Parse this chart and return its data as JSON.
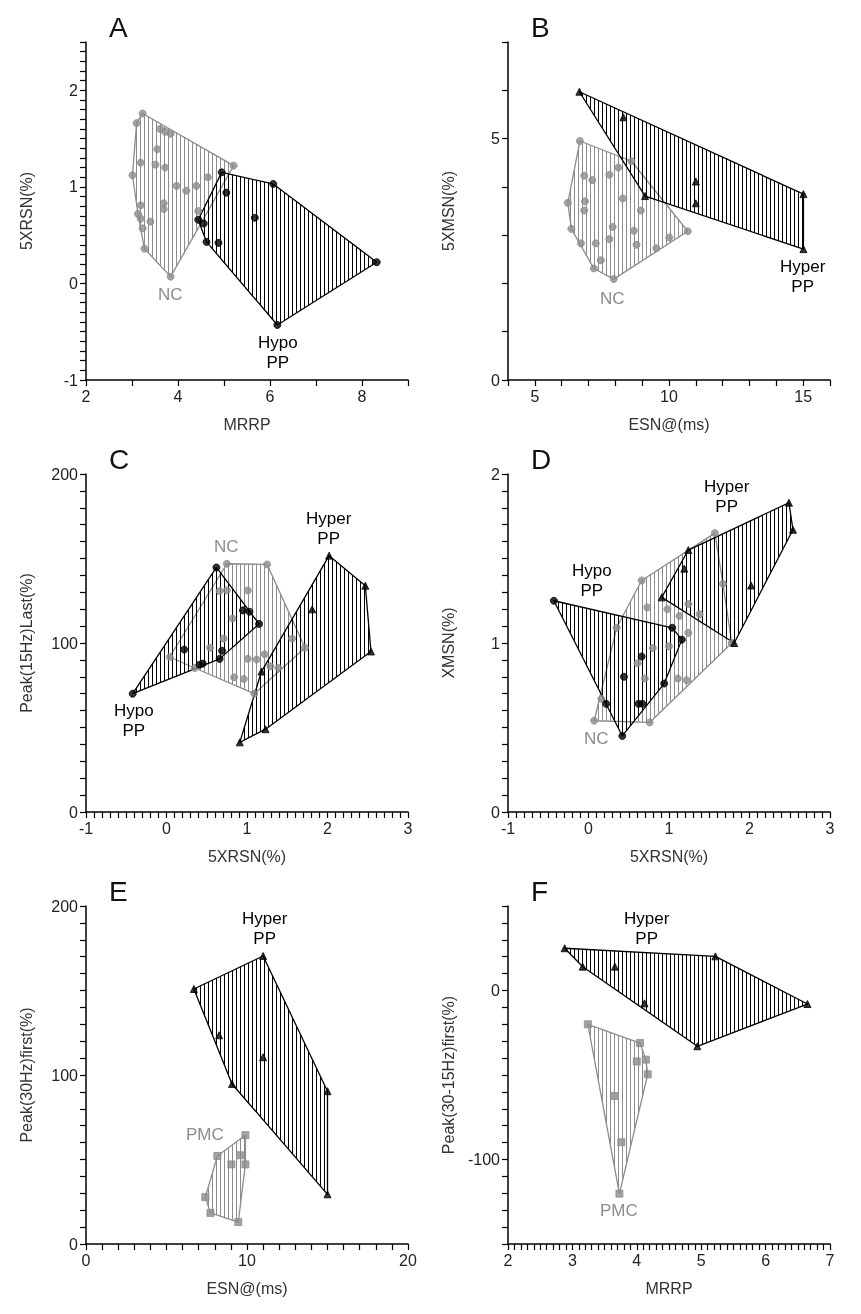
{
  "chart_data": [
    {
      "type": "scatter",
      "title": "A",
      "xlabel": "MRRP",
      "ylabel": "5XRSN(%)",
      "xlim": [
        2,
        9
      ],
      "ylim": [
        -1,
        2.5
      ],
      "xticks": [
        2,
        {
          "value": 3,
          "label": null
        },
        4,
        {
          "value": 5,
          "label": null
        },
        6,
        {
          "value": 7,
          "label": null
        },
        8,
        {
          "value": 9,
          "label": null
        }
      ],
      "yticks": [
        -1,
        {
          "value": -0.9,
          "label": null
        },
        {
          "value": -0.8,
          "label": null
        },
        {
          "value": -0.7,
          "label": null
        },
        {
          "value": -0.6,
          "label": null
        },
        {
          "value": -0.5,
          "label": null
        },
        {
          "value": -0.4,
          "label": null
        },
        {
          "value": -0.3,
          "label": null
        },
        {
          "value": -0.2,
          "label": null
        },
        {
          "value": -0.1,
          "label": null
        },
        0,
        {
          "value": 0.1,
          "label": null
        },
        {
          "value": 0.2,
          "label": null
        },
        {
          "value": 0.3,
          "label": null
        },
        {
          "value": 0.4,
          "label": null
        },
        {
          "value": 0.5,
          "label": null
        },
        {
          "value": 0.6,
          "label": null
        },
        {
          "value": 0.7,
          "label": null
        },
        {
          "value": 0.8,
          "label": null
        },
        {
          "value": 0.9,
          "label": null
        },
        1,
        {
          "value": 1.1,
          "label": null
        },
        {
          "value": 1.2,
          "label": null
        },
        {
          "value": 1.3,
          "label": null
        },
        {
          "value": 1.4,
          "label": null
        },
        {
          "value": 1.5,
          "label": null
        },
        {
          "value": 1.6,
          "label": null
        },
        {
          "value": 1.7,
          "label": null
        },
        {
          "value": 1.8,
          "label": null
        },
        {
          "value": 1.9,
          "label": null
        },
        2,
        {
          "value": 2.1,
          "label": null
        },
        {
          "value": 2.2,
          "label": null
        },
        {
          "value": 2.3,
          "label": null
        },
        {
          "value": 2.4,
          "label": null
        },
        {
          "value": 2.5,
          "label": null
        }
      ],
      "series": [
        {
          "name": "NC",
          "color": "#8c8c8c",
          "marker": "circle",
          "x": [
            3.23,
            3.1,
            3.61,
            3.72,
            3.84,
            3.55,
            5.21,
            3.19,
            3.51,
            3.72,
            3.01,
            4.65,
            3.97,
            4.18,
            4.4,
            3.69,
            3.19,
            3.69,
            4.44,
            3.13,
            3.19,
            3.4,
            3.23,
            3.27,
            3.84
          ],
          "values": [
            1.76,
            1.66,
            1.6,
            1.57,
            1.55,
            1.39,
            1.22,
            1.25,
            1.23,
            1.2,
            1.12,
            1.1,
            1.01,
            0.96,
            1.01,
            0.83,
            0.81,
            0.77,
            0.75,
            0.72,
            0.67,
            0.64,
            0.57,
            0.36,
            0.07
          ]
        },
        {
          "name": "Hypo PP",
          "color": "#000000",
          "marker": "circle",
          "x": [
            4.95,
            6.07,
            5.05,
            5.67,
            4.44,
            4.56,
            4.62,
            4.88,
            8.32,
            6.16
          ],
          "values": [
            1.15,
            1.03,
            0.94,
            0.68,
            0.66,
            0.62,
            0.43,
            0.42,
            0.22,
            -0.43
          ]
        }
      ]
    },
    {
      "type": "scatter",
      "title": "B",
      "xlabel": "ESN@(ms)",
      "ylabel": "5XMSN(%)",
      "xlim": [
        4,
        16
      ],
      "ylim": [
        0,
        7
      ],
      "xticks": [
        {
          "value": 4,
          "label": null
        },
        5,
        {
          "value": 6,
          "label": null
        },
        {
          "value": 7,
          "label": null
        },
        {
          "value": 8,
          "label": null
        },
        {
          "value": 9,
          "label": null
        },
        10,
        {
          "value": 11,
          "label": null
        },
        {
          "value": 12,
          "label": null
        },
        {
          "value": 13,
          "label": null
        },
        {
          "value": 14,
          "label": null
        },
        15,
        {
          "value": 16,
          "label": null
        }
      ],
      "yticks": [
        0,
        {
          "value": 1,
          "label": null
        },
        {
          "value": 2,
          "label": null
        },
        {
          "value": 3,
          "label": null
        },
        {
          "value": 4,
          "label": null
        },
        5,
        {
          "value": 6,
          "label": null
        },
        {
          "value": 7,
          "label": null
        }
      ],
      "series": [
        {
          "name": "NC",
          "color": "#8c8c8c",
          "marker": "circle",
          "x": [
            6.68,
            8.6,
            8.11,
            7.78,
            6.84,
            7.14,
            8.28,
            6.87,
            6.23,
            6.84,
            8.95,
            6.36,
            7.9,
            8.69,
            10.7,
            10.01,
            6.72,
            7.27,
            7.78,
            8.79,
            9.53,
            7.46,
            7.2,
            7.94
          ],
          "values": [
            4.95,
            4.53,
            4.4,
            4.25,
            4.23,
            4.14,
            3.76,
            3.7,
            3.67,
            3.51,
            3.51,
            3.13,
            3.17,
            3.09,
            3.08,
            2.95,
            2.83,
            2.83,
            2.92,
            2.8,
            2.73,
            2.48,
            2.31,
            2.09
          ]
        },
        {
          "name": "Hyper PP",
          "color": "#000000",
          "marker": "triangle",
          "x": [
            6.66,
            8.3,
            9.11,
            11.0,
            11.0,
            15.01,
            15.01
          ],
          "values": [
            5.97,
            5.44,
            3.81,
            4.11,
            3.66,
            3.85,
            2.71
          ]
        }
      ]
    },
    {
      "type": "scatter",
      "title": "C",
      "xlabel": "5XRSN(%)",
      "ylabel": "Peak(15Hz)Last(%)",
      "xlim": [
        -1,
        3
      ],
      "ylim": [
        0,
        200
      ],
      "xticks": [
        -1,
        {
          "value": -0.9,
          "label": null
        },
        {
          "value": -0.8,
          "label": null
        },
        {
          "value": -0.7,
          "label": null
        },
        {
          "value": -0.6,
          "label": null
        },
        {
          "value": -0.5,
          "label": null
        },
        {
          "value": -0.4,
          "label": null
        },
        {
          "value": -0.3,
          "label": null
        },
        {
          "value": -0.2,
          "label": null
        },
        {
          "value": -0.1,
          "label": null
        },
        0,
        {
          "value": 0.1,
          "label": null
        },
        {
          "value": 0.2,
          "label": null
        },
        {
          "value": 0.3,
          "label": null
        },
        {
          "value": 0.4,
          "label": null
        },
        {
          "value": 0.5,
          "label": null
        },
        {
          "value": 0.6,
          "label": null
        },
        {
          "value": 0.7,
          "label": null
        },
        {
          "value": 0.8,
          "label": null
        },
        {
          "value": 0.9,
          "label": null
        },
        1,
        {
          "value": 1.1,
          "label": null
        },
        {
          "value": 1.2,
          "label": null
        },
        {
          "value": 1.3,
          "label": null
        },
        {
          "value": 1.4,
          "label": null
        },
        {
          "value": 1.5,
          "label": null
        },
        {
          "value": 1.6,
          "label": null
        },
        {
          "value": 1.7,
          "label": null
        },
        {
          "value": 1.8,
          "label": null
        },
        {
          "value": 1.9,
          "label": null
        },
        2,
        {
          "value": 2.1,
          "label": null
        },
        {
          "value": 2.2,
          "label": null
        },
        {
          "value": 2.3,
          "label": null
        },
        {
          "value": 2.4,
          "label": null
        },
        {
          "value": 2.5,
          "label": null
        },
        {
          "value": 2.6,
          "label": null
        },
        {
          "value": 2.7,
          "label": null
        },
        {
          "value": 2.8,
          "label": null
        },
        {
          "value": 2.9,
          "label": null
        },
        3
      ],
      "yticks": [
        0,
        {
          "value": 10,
          "label": null
        },
        {
          "value": 20,
          "label": null
        },
        {
          "value": 30,
          "label": null
        },
        {
          "value": 40,
          "label": null
        },
        {
          "value": 50,
          "label": null
        },
        {
          "value": 60,
          "label": null
        },
        {
          "value": 70,
          "label": null
        },
        {
          "value": 80,
          "label": null
        },
        {
          "value": 90,
          "label": null
        },
        100,
        {
          "value": 110,
          "label": null
        },
        {
          "value": 120,
          "label": null
        },
        {
          "value": 130,
          "label": null
        },
        {
          "value": 140,
          "label": null
        },
        {
          "value": 150,
          "label": null
        },
        {
          "value": 160,
          "label": null
        },
        {
          "value": 170,
          "label": null
        },
        {
          "value": 180,
          "label": null
        },
        {
          "value": 190,
          "label": null
        },
        200
      ],
      "series": [
        {
          "name": "NC",
          "color": "#8c8c8c",
          "marker": "circle",
          "x": [
            0.75,
            1.25,
            0.66,
            0.75,
            1.01,
            0.82,
            0.71,
            0.54,
            1.72,
            1.56,
            0.04,
            1.01,
            1.12,
            1.22,
            1.29,
            1.39,
            0.84,
            0.96,
            1.09,
            0.35
          ],
          "values": [
            146.9,
            146.5,
            130.7,
            131.1,
            131.1,
            114.5,
            102.6,
            97.2,
            97.2,
            102.6,
            91.7,
            90.6,
            90.2,
            93.3,
            86.2,
            85.2,
            79.7,
            78.7,
            70.0,
            85.2
          ]
        },
        {
          "name": "Hypo PP",
          "color": "#000000",
          "marker": "circle",
          "x": [
            0.62,
            0.95,
            1.03,
            1.15,
            0.22,
            0.69,
            0.66,
            0.41,
            0.45,
            -0.42
          ],
          "values": [
            144.7,
            119.3,
            118.5,
            111.3,
            96.1,
            95.4,
            90.6,
            87.1,
            87.8,
            70.0
          ]
        },
        {
          "name": "Hyper PP",
          "color": "#000000",
          "marker": "triangle",
          "x": [
            2.02,
            2.47,
            1.81,
            2.54,
            1.18,
            1.23,
            0.91
          ],
          "values": [
            151.7,
            133.9,
            119.9,
            95.0,
            83.1,
            49.0,
            41.2
          ]
        }
      ]
    },
    {
      "type": "scatter",
      "title": "D",
      "xlabel": "5XRSN(%)",
      "ylabel": "XMSN(%)",
      "xlim": [
        -1,
        3
      ],
      "ylim": [
        0,
        2
      ],
      "xticks": [
        -1,
        {
          "value": -0.9,
          "label": null
        },
        {
          "value": -0.8,
          "label": null
        },
        {
          "value": -0.7,
          "label": null
        },
        {
          "value": -0.6,
          "label": null
        },
        {
          "value": -0.5,
          "label": null
        },
        {
          "value": -0.4,
          "label": null
        },
        {
          "value": -0.3,
          "label": null
        },
        {
          "value": -0.2,
          "label": null
        },
        {
          "value": -0.1,
          "label": null
        },
        0,
        {
          "value": 0.1,
          "label": null
        },
        {
          "value": 0.2,
          "label": null
        },
        {
          "value": 0.3,
          "label": null
        },
        {
          "value": 0.4,
          "label": null
        },
        {
          "value": 0.5,
          "label": null
        },
        {
          "value": 0.6,
          "label": null
        },
        {
          "value": 0.7,
          "label": null
        },
        {
          "value": 0.8,
          "label": null
        },
        {
          "value": 0.9,
          "label": null
        },
        1,
        {
          "value": 1.1,
          "label": null
        },
        {
          "value": 1.2,
          "label": null
        },
        {
          "value": 1.3,
          "label": null
        },
        {
          "value": 1.4,
          "label": null
        },
        {
          "value": 1.5,
          "label": null
        },
        {
          "value": 1.6,
          "label": null
        },
        {
          "value": 1.7,
          "label": null
        },
        {
          "value": 1.8,
          "label": null
        },
        {
          "value": 1.9,
          "label": null
        },
        2,
        {
          "value": 2.1,
          "label": null
        },
        {
          "value": 2.2,
          "label": null
        },
        {
          "value": 2.3,
          "label": null
        },
        {
          "value": 2.4,
          "label": null
        },
        {
          "value": 2.5,
          "label": null
        },
        {
          "value": 2.6,
          "label": null
        },
        {
          "value": 2.7,
          "label": null
        },
        {
          "value": 2.8,
          "label": null
        },
        {
          "value": 2.9,
          "label": null
        },
        3
      ],
      "yticks": [
        0,
        {
          "value": 0.1,
          "label": null
        },
        {
          "value": 0.2,
          "label": null
        },
        {
          "value": 0.3,
          "label": null
        },
        {
          "value": 0.4,
          "label": null
        },
        {
          "value": 0.5,
          "label": null
        },
        {
          "value": 0.6,
          "label": null
        },
        {
          "value": 0.7,
          "label": null
        },
        {
          "value": 0.8,
          "label": null
        },
        {
          "value": 0.9,
          "label": null
        },
        1,
        {
          "value": 1.1,
          "label": null
        },
        {
          "value": 1.2,
          "label": null
        },
        {
          "value": 1.3,
          "label": null
        },
        {
          "value": 1.4,
          "label": null
        },
        {
          "value": 1.5,
          "label": null
        },
        {
          "value": 1.6,
          "label": null
        },
        {
          "value": 1.7,
          "label": null
        },
        {
          "value": 1.8,
          "label": null
        },
        {
          "value": 1.9,
          "label": null
        },
        2
      ],
      "series": [
        {
          "name": "NC",
          "color": "#8c8c8c",
          "marker": "circle",
          "x": [
            1.57,
            0.66,
            1.67,
            0.73,
            0.98,
            1.24,
            1.38,
            1.13,
            1.24,
            0.35,
            1.0,
            0.8,
            0.61,
            0.7,
            1.11,
            1.22,
            0.16,
            0.07,
            0.76,
            1.78
          ],
          "values": [
            1.65,
            1.37,
            1.35,
            1.21,
            1.2,
            1.23,
            1.17,
            1.16,
            1.06,
            1.09,
            0.98,
            0.97,
            0.88,
            0.79,
            0.79,
            0.78,
            0.67,
            0.54,
            0.53,
            1.0
          ]
        },
        {
          "name": "Hypo PP",
          "color": "#000000",
          "marker": "circle",
          "x": [
            -0.43,
            1.04,
            1.16,
            0.66,
            0.44,
            0.94,
            0.22,
            0.62,
            0.67,
            0.42
          ],
          "values": [
            1.25,
            1.09,
            1.02,
            0.92,
            0.8,
            0.76,
            0.64,
            0.64,
            0.64,
            0.45
          ]
        },
        {
          "name": "Hyper PP",
          "color": "#000000",
          "marker": "triangle",
          "x": [
            2.49,
            2.54,
            1.24,
            1.19,
            2.02,
            0.91,
            1.81
          ],
          "values": [
            1.83,
            1.67,
            1.55,
            1.44,
            1.34,
            1.27,
            1.0
          ]
        }
      ]
    },
    {
      "type": "scatter",
      "title": "E",
      "xlabel": "ESN@(ms)",
      "ylabel": "Peak(30Hz)first(%)",
      "xlim": [
        0,
        20
      ],
      "ylim": [
        0,
        200
      ],
      "xticks": [
        0,
        {
          "value": 1,
          "label": null
        },
        {
          "value": 2,
          "label": null
        },
        {
          "value": 3,
          "label": null
        },
        {
          "value": 4,
          "label": null
        },
        {
          "value": 5,
          "label": null
        },
        {
          "value": 6,
          "label": null
        },
        {
          "value": 7,
          "label": null
        },
        {
          "value": 8,
          "label": null
        },
        {
          "value": 9,
          "label": null
        },
        10,
        {
          "value": 11,
          "label": null
        },
        {
          "value": 12,
          "label": null
        },
        {
          "value": 13,
          "label": null
        },
        {
          "value": 14,
          "label": null
        },
        {
          "value": 15,
          "label": null
        },
        {
          "value": 16,
          "label": null
        },
        {
          "value": 17,
          "label": null
        },
        {
          "value": 18,
          "label": null
        },
        {
          "value": 19,
          "label": null
        },
        20
      ],
      "yticks": [
        0,
        {
          "value": 10,
          "label": null
        },
        {
          "value": 20,
          "label": null
        },
        {
          "value": 30,
          "label": null
        },
        {
          "value": 40,
          "label": null
        },
        {
          "value": 50,
          "label": null
        },
        {
          "value": 60,
          "label": null
        },
        {
          "value": 70,
          "label": null
        },
        {
          "value": 80,
          "label": null
        },
        {
          "value": 90,
          "label": null
        },
        100,
        {
          "value": 110,
          "label": null
        },
        {
          "value": 120,
          "label": null
        },
        {
          "value": 130,
          "label": null
        },
        {
          "value": 140,
          "label": null
        },
        {
          "value": 150,
          "label": null
        },
        {
          "value": 160,
          "label": null
        },
        {
          "value": 170,
          "label": null
        },
        {
          "value": 180,
          "label": null
        },
        {
          "value": 190,
          "label": null
        },
        200
      ],
      "series": [
        {
          "name": "PMC",
          "color": "#8c8c8c",
          "marker": "square",
          "x": [
            8.16,
            9.9,
            9.57,
            9.03,
            9.9,
            7.41,
            7.73,
            9.46
          ],
          "values": [
            52.1,
            64.4,
            52.5,
            47.1,
            47.1,
            27.7,
            18.4,
            13.0
          ]
        },
        {
          "name": "Hyper PP",
          "color": "#000000",
          "marker": "triangle",
          "x": [
            6.7,
            11.0,
            8.27,
            11.0,
            9.07,
            15.0,
            15.0
          ],
          "values": [
            150.9,
            170.4,
            123.5,
            110.5,
            94.7,
            90.4,
            29.4
          ]
        }
      ]
    },
    {
      "type": "scatter",
      "title": "F",
      "xlabel": "MRRP",
      "ylabel": "Peak(30-15Hz)first(%)",
      "xlim": [
        2,
        7
      ],
      "ylim": [
        -150,
        50
      ],
      "xticks": [
        2,
        {
          "value": 2.1,
          "label": null
        },
        {
          "value": 2.2,
          "label": null
        },
        {
          "value": 2.3,
          "label": null
        },
        {
          "value": 2.4,
          "label": null
        },
        {
          "value": 2.5,
          "label": null
        },
        {
          "value": 2.6,
          "label": null
        },
        {
          "value": 2.7,
          "label": null
        },
        {
          "value": 2.8,
          "label": null
        },
        {
          "value": 2.9,
          "label": null
        },
        3,
        {
          "value": 3.1,
          "label": null
        },
        {
          "value": 3.2,
          "label": null
        },
        {
          "value": 3.3,
          "label": null
        },
        {
          "value": 3.4,
          "label": null
        },
        {
          "value": 3.5,
          "label": null
        },
        {
          "value": 3.6,
          "label": null
        },
        {
          "value": 3.7,
          "label": null
        },
        {
          "value": 3.8,
          "label": null
        },
        {
          "value": 3.9,
          "label": null
        },
        4,
        {
          "value": 4.1,
          "label": null
        },
        {
          "value": 4.2,
          "label": null
        },
        {
          "value": 4.3,
          "label": null
        },
        {
          "value": 4.4,
          "label": null
        },
        {
          "value": 4.5,
          "label": null
        },
        {
          "value": 4.6,
          "label": null
        },
        {
          "value": 4.7,
          "label": null
        },
        {
          "value": 4.8,
          "label": null
        },
        {
          "value": 4.9,
          "label": null
        },
        5,
        {
          "value": 5.1,
          "label": null
        },
        {
          "value": 5.2,
          "label": null
        },
        {
          "value": 5.3,
          "label": null
        },
        {
          "value": 5.4,
          "label": null
        },
        {
          "value": 5.5,
          "label": null
        },
        {
          "value": 5.6,
          "label": null
        },
        {
          "value": 5.7,
          "label": null
        },
        {
          "value": 5.8,
          "label": null
        },
        {
          "value": 5.9,
          "label": null
        },
        6,
        {
          "value": 6.1,
          "label": null
        },
        {
          "value": 6.2,
          "label": null
        },
        {
          "value": 6.3,
          "label": null
        },
        {
          "value": 6.4,
          "label": null
        },
        {
          "value": 6.5,
          "label": null
        },
        {
          "value": 6.6,
          "label": null
        },
        {
          "value": 6.7,
          "label": null
        },
        {
          "value": 6.8,
          "label": null
        },
        {
          "value": 6.9,
          "label": null
        },
        7
      ],
      "yticks": [
        {
          "value": -150,
          "label": null
        },
        {
          "value": -140,
          "label": null
        },
        {
          "value": -130,
          "label": null
        },
        {
          "value": -120,
          "label": null
        },
        {
          "value": -110,
          "label": null
        },
        -100,
        {
          "value": -90,
          "label": null
        },
        {
          "value": -80,
          "label": null
        },
        {
          "value": -70,
          "label": null
        },
        {
          "value": -60,
          "label": null
        },
        {
          "value": -50,
          "label": null
        },
        {
          "value": -40,
          "label": null
        },
        {
          "value": -30,
          "label": null
        },
        {
          "value": -20,
          "label": null
        },
        {
          "value": -10,
          "label": null
        },
        0,
        {
          "value": 10,
          "label": null
        },
        {
          "value": 20,
          "label": null
        },
        {
          "value": 30,
          "label": null
        },
        {
          "value": 40,
          "label": null
        },
        {
          "value": 50,
          "label": null
        }
      ],
      "series": [
        {
          "name": "PMC",
          "color": "#8c8c8c",
          "marker": "square",
          "x": [
            3.24,
            4.05,
            4.14,
            4.0,
            4.17,
            3.65,
            3.76,
            3.73
          ],
          "values": [
            -20.0,
            -31.1,
            -40.9,
            -42.0,
            -49.6,
            -62.4,
            -89.8,
            -120.2
          ]
        },
        {
          "name": "Hyper PP",
          "color": "#000000",
          "marker": "triangle",
          "x": [
            2.88,
            3.16,
            3.66,
            5.22,
            4.12,
            6.65,
            4.94
          ],
          "values": [
            25.0,
            14.1,
            14.1,
            20.2,
            -7.6,
            -8.0,
            -33.0
          ]
        }
      ]
    }
  ]
}
